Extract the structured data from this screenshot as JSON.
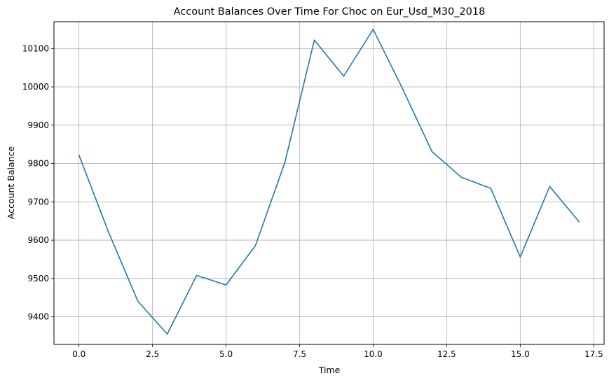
{
  "chart_data": {
    "type": "line",
    "title": "Account Balances Over Time For Choc on Eur_Usd_M30_2018",
    "xlabel": "Time",
    "ylabel": "Account Balance",
    "xlim": [
      -0.85,
      17.85
    ],
    "ylim": [
      9328,
      10170
    ],
    "x_ticks": [
      0,
      2.5,
      5,
      7.5,
      10,
      12.5,
      15,
      17.5
    ],
    "x_tick_labels": [
      "0.0",
      "2.5",
      "5.0",
      "7.5",
      "10.0",
      "12.5",
      "15.0",
      "17.5"
    ],
    "y_ticks": [
      9400,
      9500,
      9600,
      9700,
      9800,
      9900,
      10000,
      10100
    ],
    "y_tick_labels": [
      "9400",
      "9500",
      "9600",
      "9700",
      "9800",
      "9900",
      "10000",
      "10100"
    ],
    "grid": true,
    "series": [
      {
        "color": "#1f77b4",
        "x": [
          0,
          1,
          2,
          3,
          4,
          5,
          6,
          7,
          8,
          9,
          10,
          11,
          12,
          13,
          14,
          15,
          16,
          17
        ],
        "values": [
          9822,
          9622,
          9441,
          9355,
          9508,
          9483,
          9586,
          9803,
          10122,
          10028,
          10150,
          9995,
          9831,
          9764,
          9735,
          9556,
          9740,
          9648
        ]
      }
    ]
  }
}
